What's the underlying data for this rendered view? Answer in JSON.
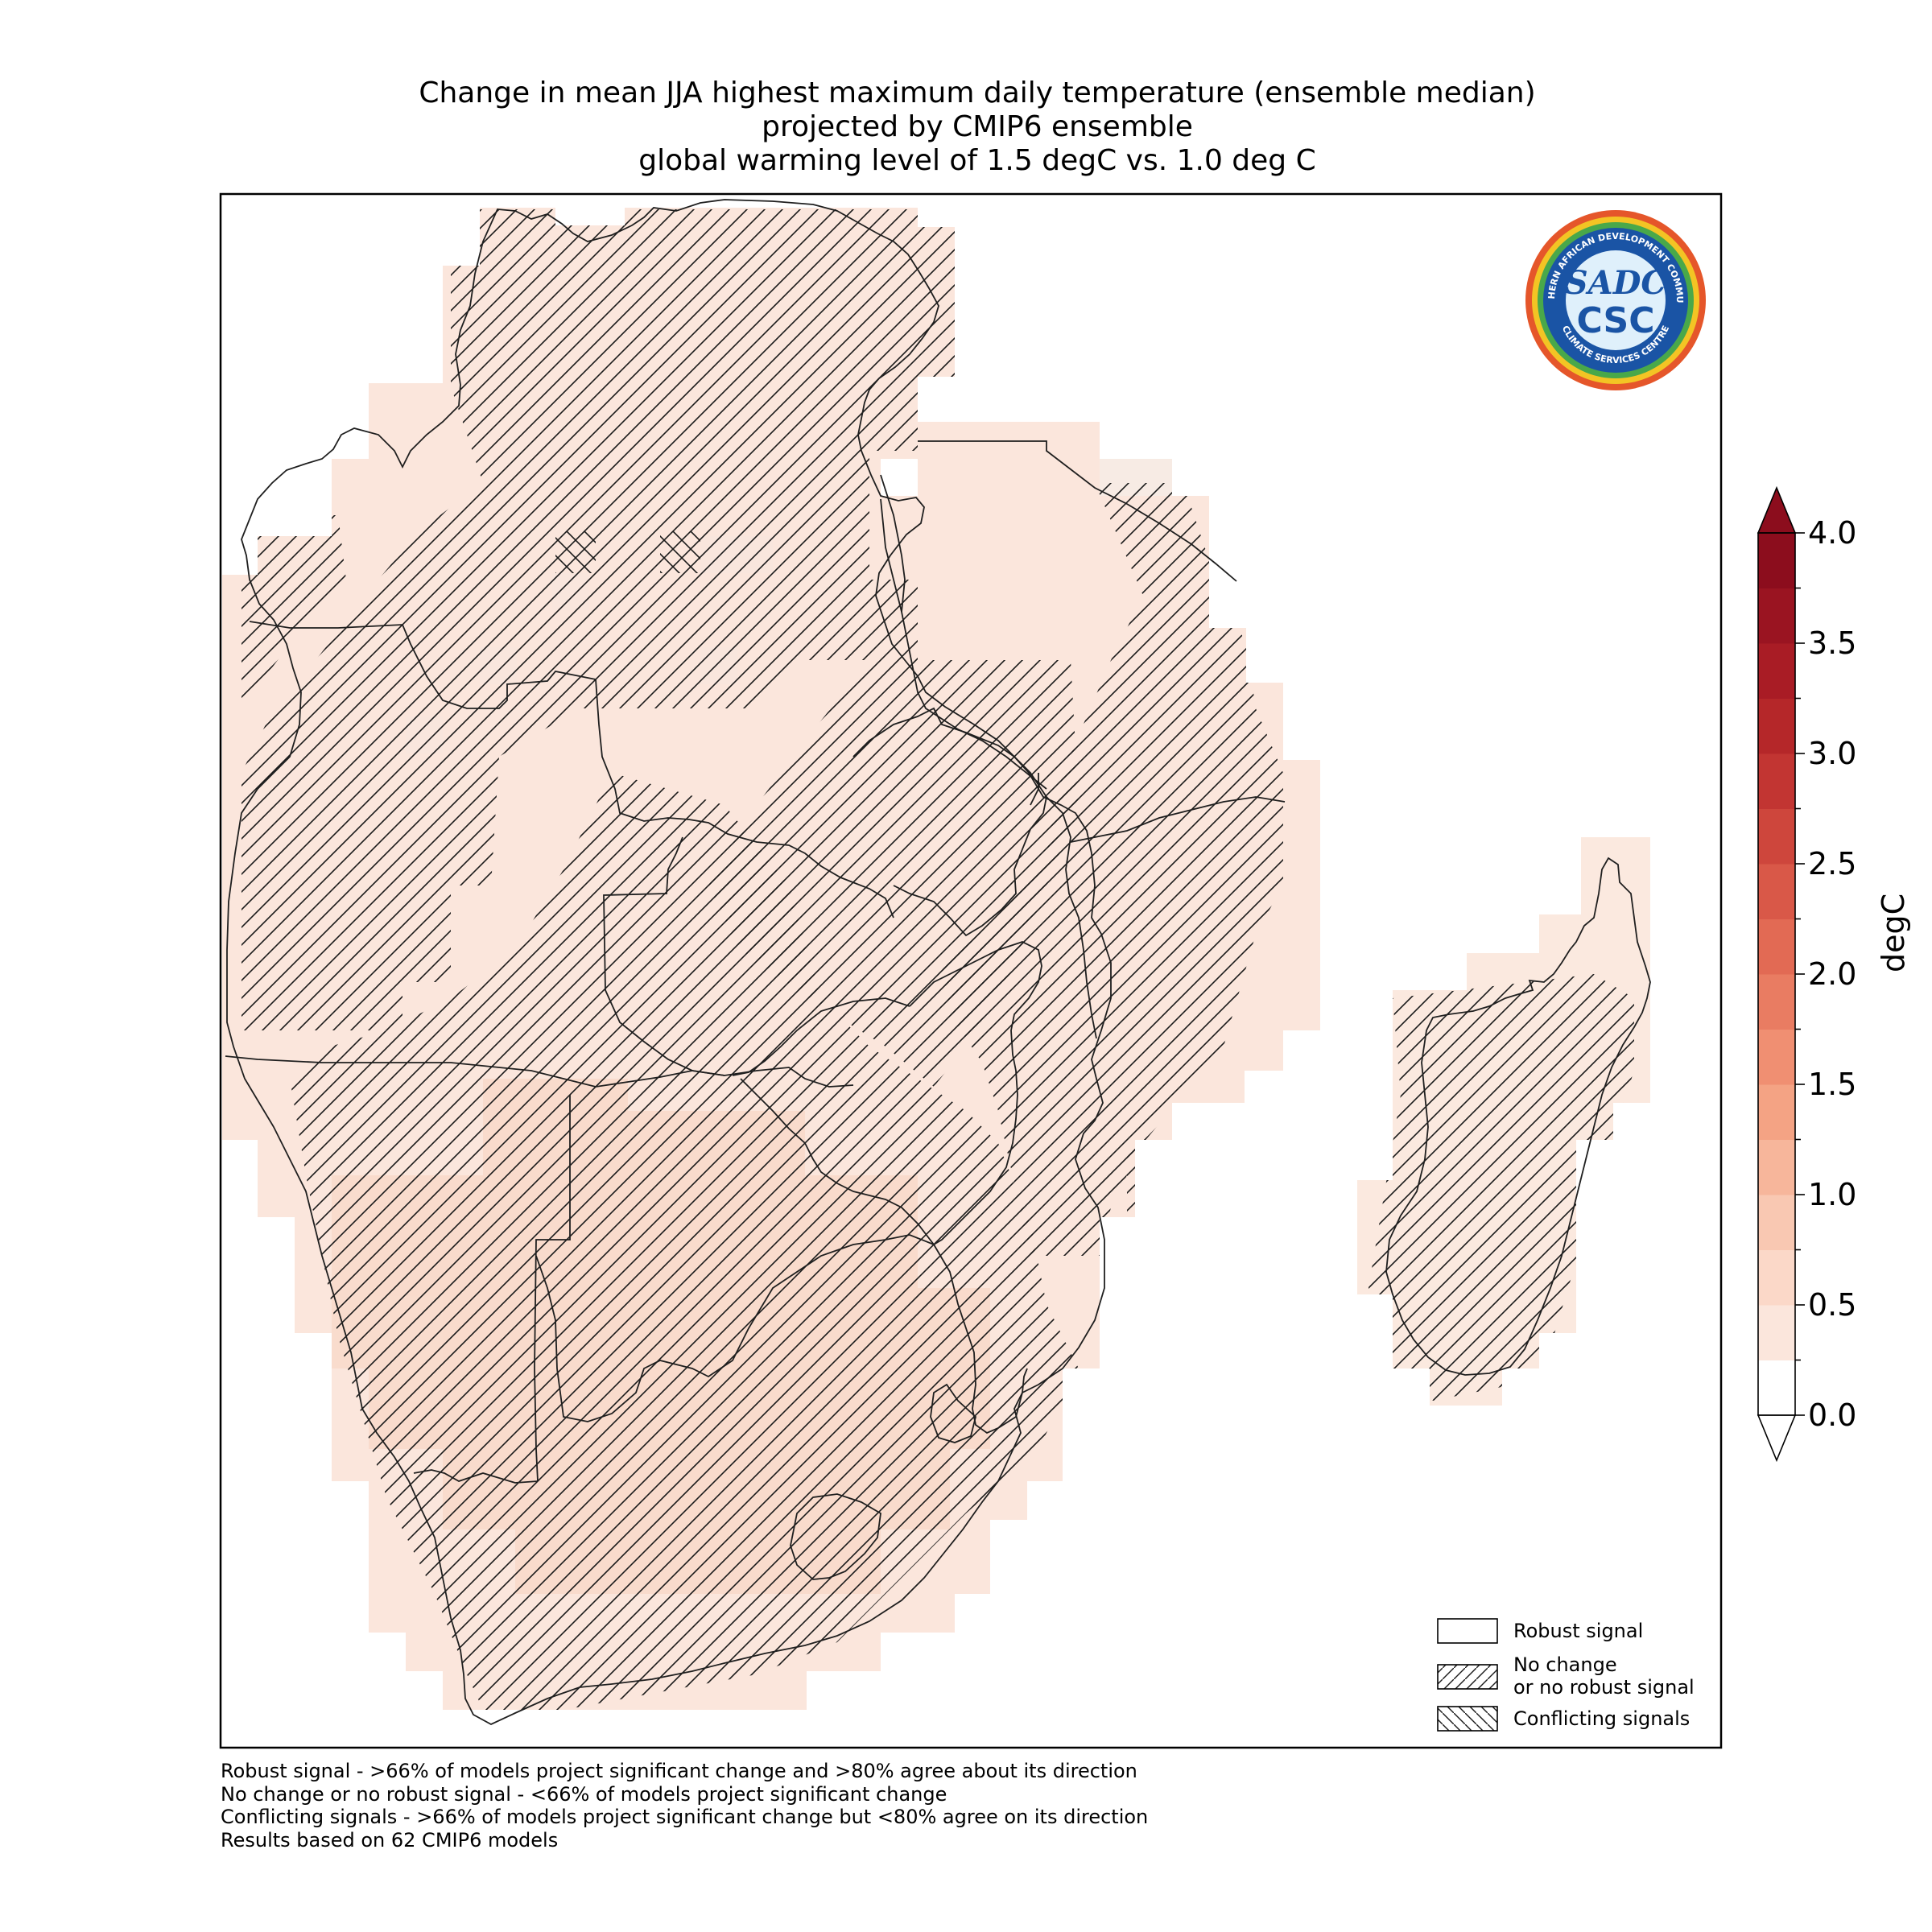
{
  "title": {
    "line1": "Change in mean JJA highest maximum daily temperature (ensemble median)",
    "line2": "projected by CMIP6 ensemble",
    "line3": "global warming level of 1.5 degC vs. 1.0 deg C"
  },
  "logo": {
    "top_text": "SOUTHERN AFRICAN DEVELOPMENT COMMUNITY",
    "bottom_text": "CLIMATE SERVICES CENTRE",
    "center_top": "SADC",
    "center_bottom": "CSC"
  },
  "colorbar": {
    "label": "degC",
    "ticks": [
      "0.0",
      "0.5",
      "1.0",
      "1.5",
      "2.0",
      "2.5",
      "3.0",
      "3.5",
      "4.0"
    ],
    "min": 0.0,
    "max": 4.0,
    "colors": [
      "#ffffff",
      "#fbe6dc",
      "#fbd8c8",
      "#f9c8b2",
      "#f7b69b",
      "#f4a384",
      "#f08f72",
      "#e97c62",
      "#e26a54",
      "#d95848",
      "#ce463c",
      "#c23532",
      "#b52729",
      "#a91c25",
      "#9a1421",
      "#8c0d1d"
    ],
    "extend": "both"
  },
  "legend": {
    "items": [
      {
        "label": "Robust signal",
        "pattern": "none"
      },
      {
        "label": "No change\nor no robust signal",
        "pattern": "forward-hatch"
      },
      {
        "label": "Conflicting signals",
        "pattern": "back-hatch"
      }
    ]
  },
  "footnotes": [
    "Robust signal - >66% of models project significant change and >80% agree about its direction",
    "No change or no robust signal - <66% of models project significant change",
    "Conflicting signals - >66% of models project significant change but <80% agree on its direction",
    "Results based on 62 CMIP6 models"
  ],
  "map": {
    "region": "Southern Africa (SADC)",
    "value_range_degC": [
      0.5,
      1.0
    ],
    "typical_value_degC": 0.7,
    "colors": {
      "light": "#fbe9df",
      "mid": "#fae0d3",
      "warm": "#f8d7c8"
    }
  }
}
